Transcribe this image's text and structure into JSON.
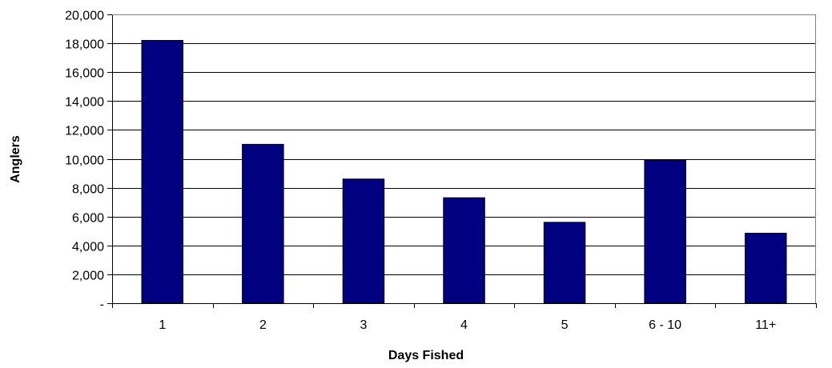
{
  "chart_data": {
    "type": "bar",
    "title": "",
    "xlabel": "Days Fished",
    "ylabel": "Anglers",
    "categories": [
      "1",
      "2",
      "3",
      "4",
      "5",
      "6 - 10",
      "11+"
    ],
    "values": [
      18200,
      11000,
      8600,
      7300,
      5600,
      9900,
      4850
    ],
    "ylim": [
      0,
      20000
    ],
    "y_ticks": [
      0,
      2000,
      4000,
      6000,
      8000,
      10000,
      12000,
      14000,
      16000,
      18000,
      20000
    ],
    "y_tick_labels": [
      "-",
      "2,000",
      "4,000",
      "6,000",
      "8,000",
      "10,000",
      "12,000",
      "14,000",
      "16,000",
      "18,000",
      "20,000"
    ],
    "grid": true,
    "legend": "none",
    "bar_color": "#000080"
  }
}
